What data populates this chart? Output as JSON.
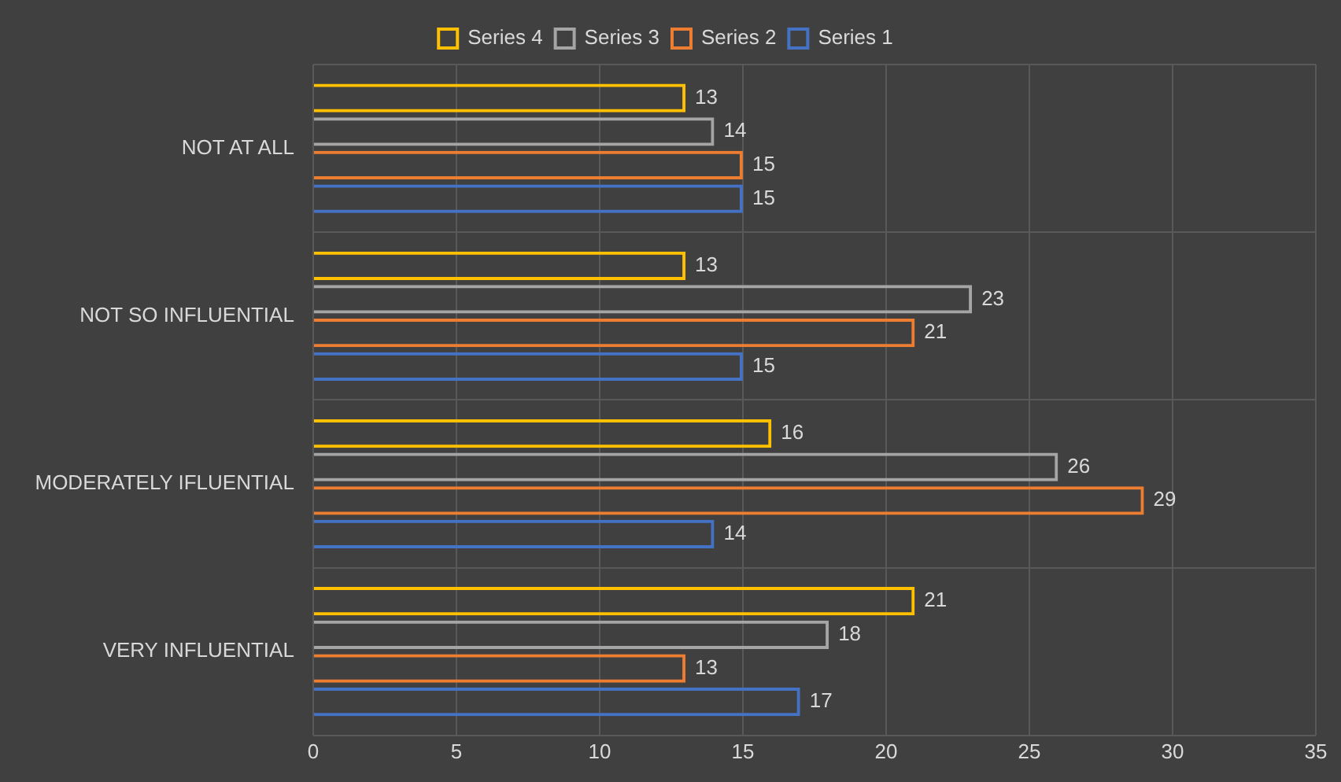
{
  "chart_data": {
    "type": "bar",
    "orientation": "horizontal",
    "categories": [
      "NOT AT ALL",
      "NOT SO INFLUENTIAL",
      "MODERATELY IFLUENTIAL",
      "VERY INFLUENTIAL"
    ],
    "series": [
      {
        "name": "Series 4",
        "color": "#ffc000",
        "values": [
          13,
          13,
          16,
          21
        ]
      },
      {
        "name": "Series 3",
        "color": "#a5a5a5",
        "values": [
          14,
          23,
          26,
          18
        ]
      },
      {
        "name": "Series 2",
        "color": "#ed7d31",
        "values": [
          15,
          21,
          29,
          13
        ]
      },
      {
        "name": "Series 1",
        "color": "#4472c4",
        "values": [
          15,
          15,
          14,
          17
        ]
      }
    ],
    "xlim": [
      0,
      35
    ],
    "xticks": [
      0,
      5,
      10,
      15,
      20,
      25,
      30,
      35
    ],
    "grid": true,
    "legend": "top",
    "data_labels": true
  }
}
